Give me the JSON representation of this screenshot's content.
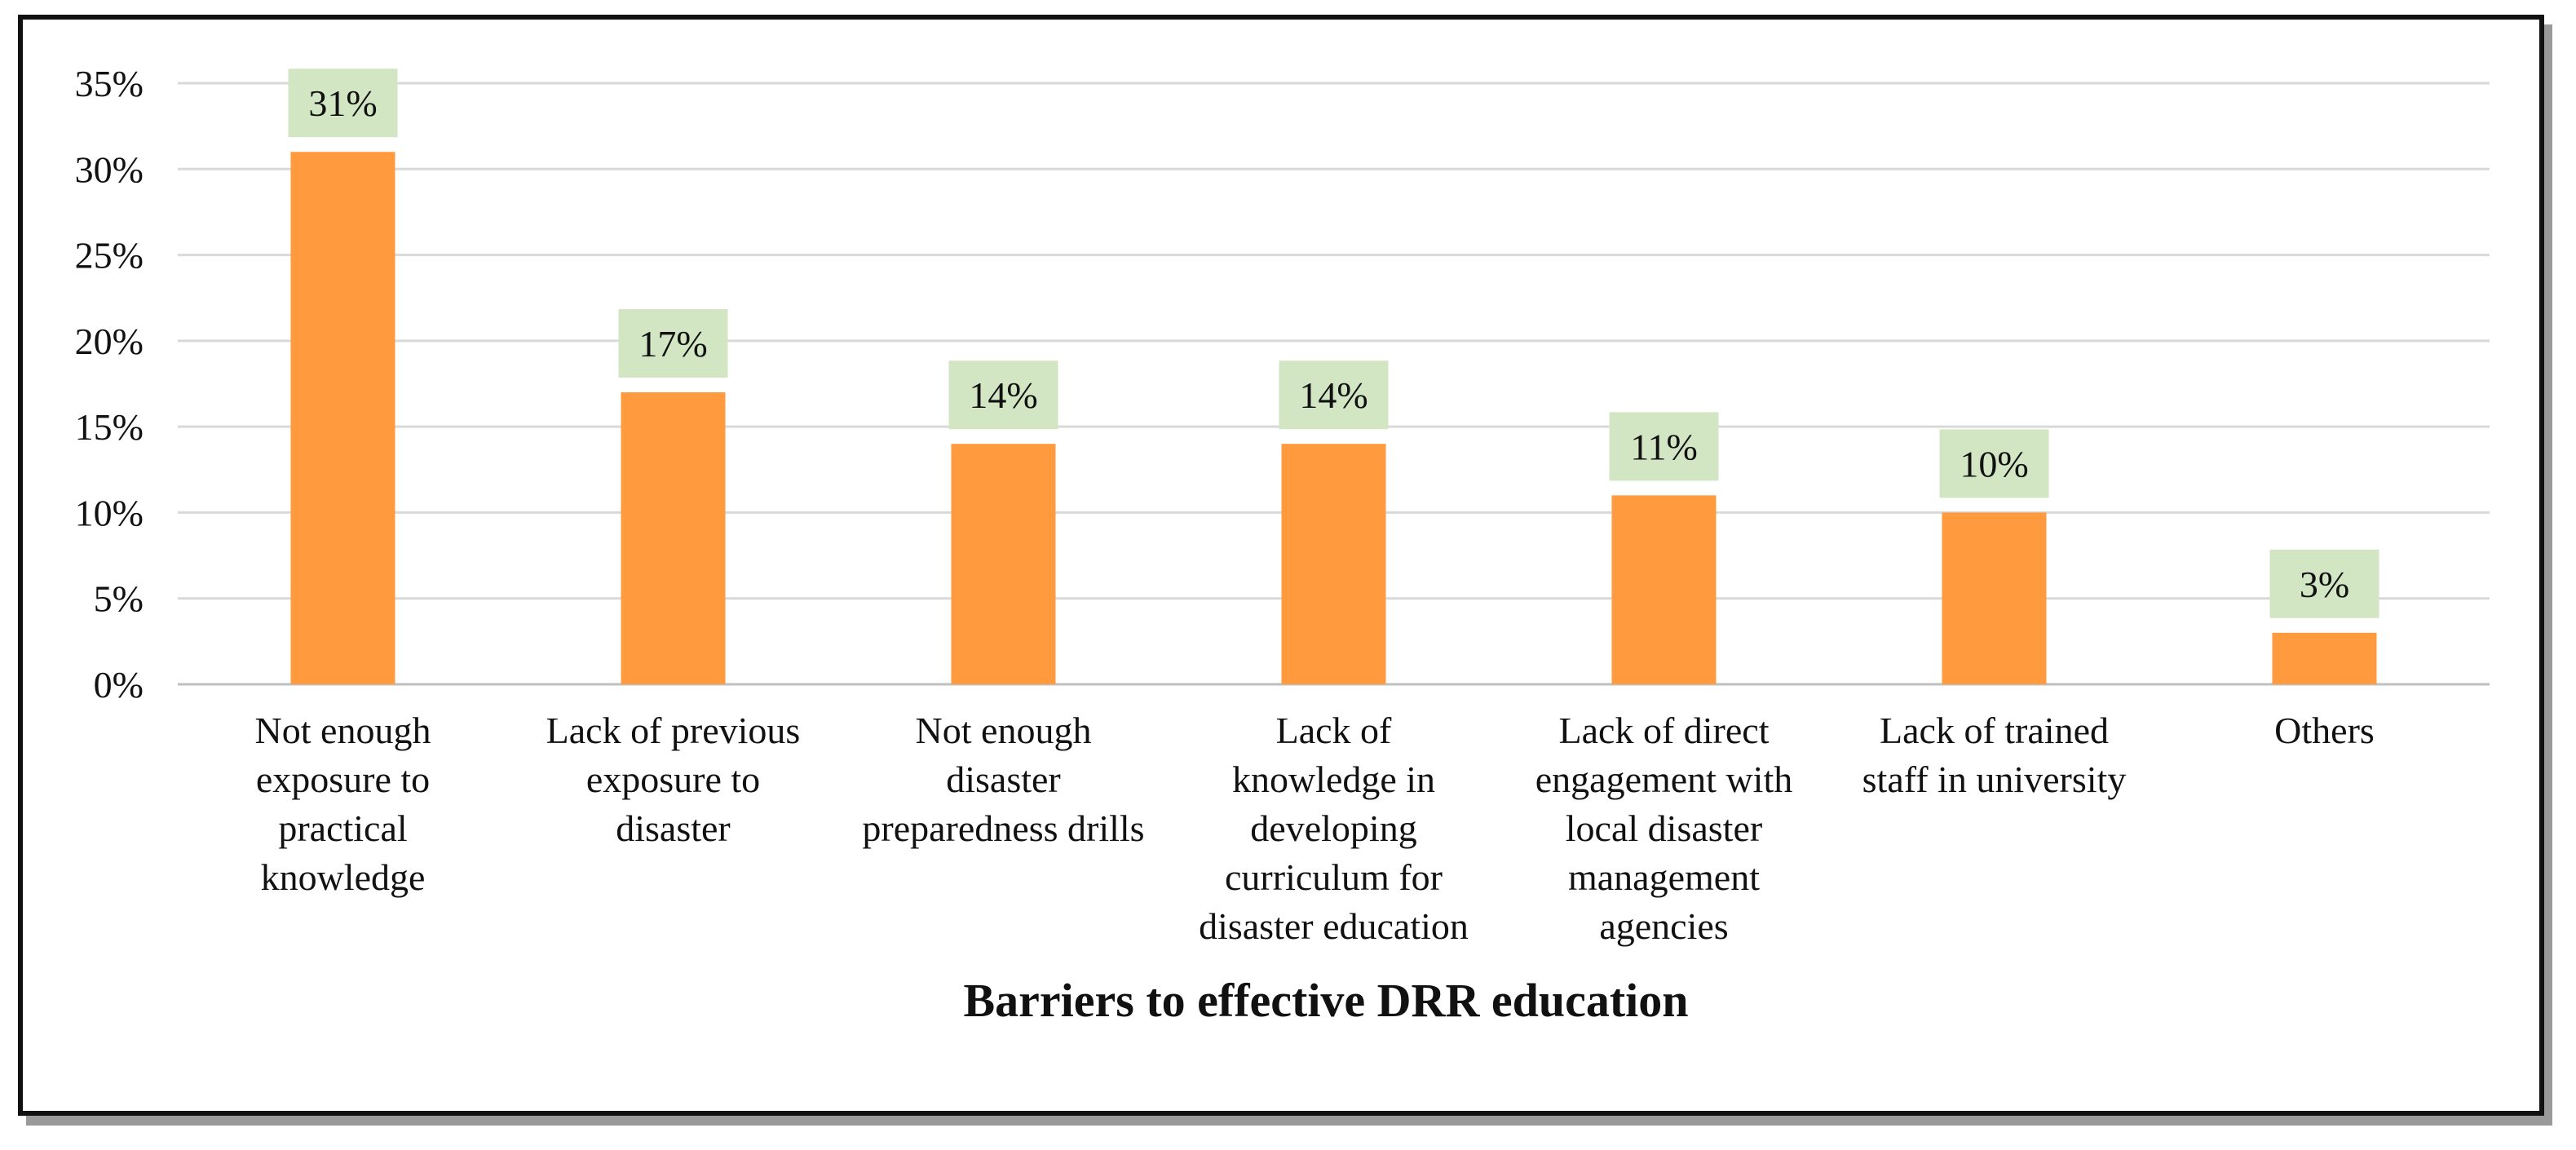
{
  "chart_data": {
    "type": "bar",
    "title": "",
    "xlabel": "Barriers to effective DRR education",
    "ylabel": "",
    "ylim": [
      0,
      35
    ],
    "ytick_step": 5,
    "ytick_labels": [
      "0%",
      "5%",
      "10%",
      "15%",
      "20%",
      "25%",
      "30%",
      "35%"
    ],
    "grid": true,
    "categories": [
      [
        "Not enough",
        "exposure to",
        "practical",
        "knowledge"
      ],
      [
        "Lack of previous",
        "exposure to",
        "disaster"
      ],
      [
        "Not enough",
        "disaster",
        "preparedness drills"
      ],
      [
        "Lack of",
        "knowledge in",
        "developing",
        "curriculum for",
        "disaster education"
      ],
      [
        "Lack of direct",
        "engagement with",
        "local disaster",
        "management",
        "agencies"
      ],
      [
        "Lack of trained",
        "staff in university"
      ],
      [
        "Others"
      ]
    ],
    "values": [
      31,
      17,
      14,
      14,
      11,
      10,
      3
    ],
    "data_labels": [
      "31%",
      "17%",
      "14%",
      "14%",
      "11%",
      "10%",
      "3%"
    ],
    "colors": {
      "bar": "#FF9A3E",
      "label_bg": "#D3E6C4",
      "grid": "#D9D9D9",
      "axis": "#BFBFBF"
    }
  }
}
